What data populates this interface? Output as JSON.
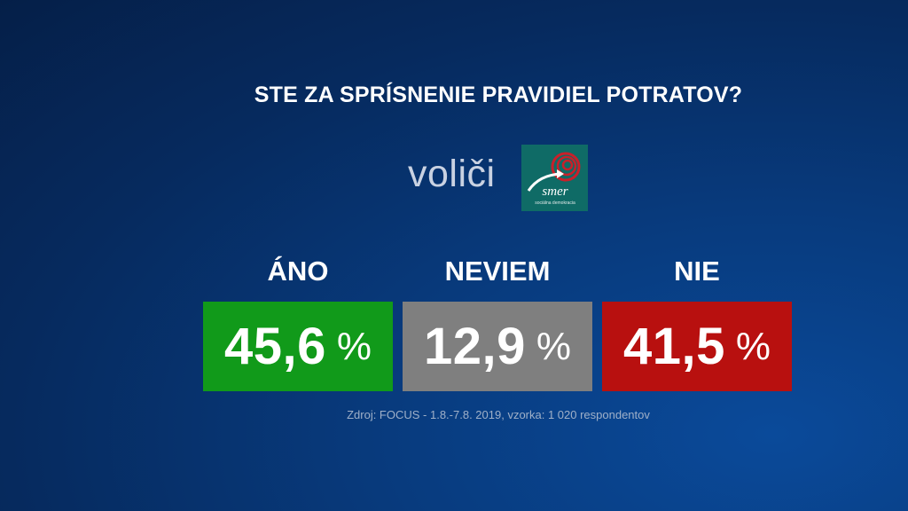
{
  "chart_data": {
    "type": "table",
    "title": "STE ZA SPRÍSNENIE PRAVIDIEL POTRATOV?",
    "subtitle": "voliči",
    "categories": [
      "ÁNO",
      "NEVIEM",
      "NIE"
    ],
    "values": [
      "45,6",
      "12,9",
      "41,5"
    ],
    "unit": "%",
    "colors": [
      "#119a1a",
      "#7f7f7f",
      "#b8100f"
    ],
    "source": "Zdroj: FOCUS - 1.8.-7.8. 2019, vzorka: 1 020 respondentov"
  },
  "logo": {
    "text": "smer",
    "tagline": "sociálna demokracia",
    "color": "#0f6b66",
    "accent": "#c8202a"
  }
}
